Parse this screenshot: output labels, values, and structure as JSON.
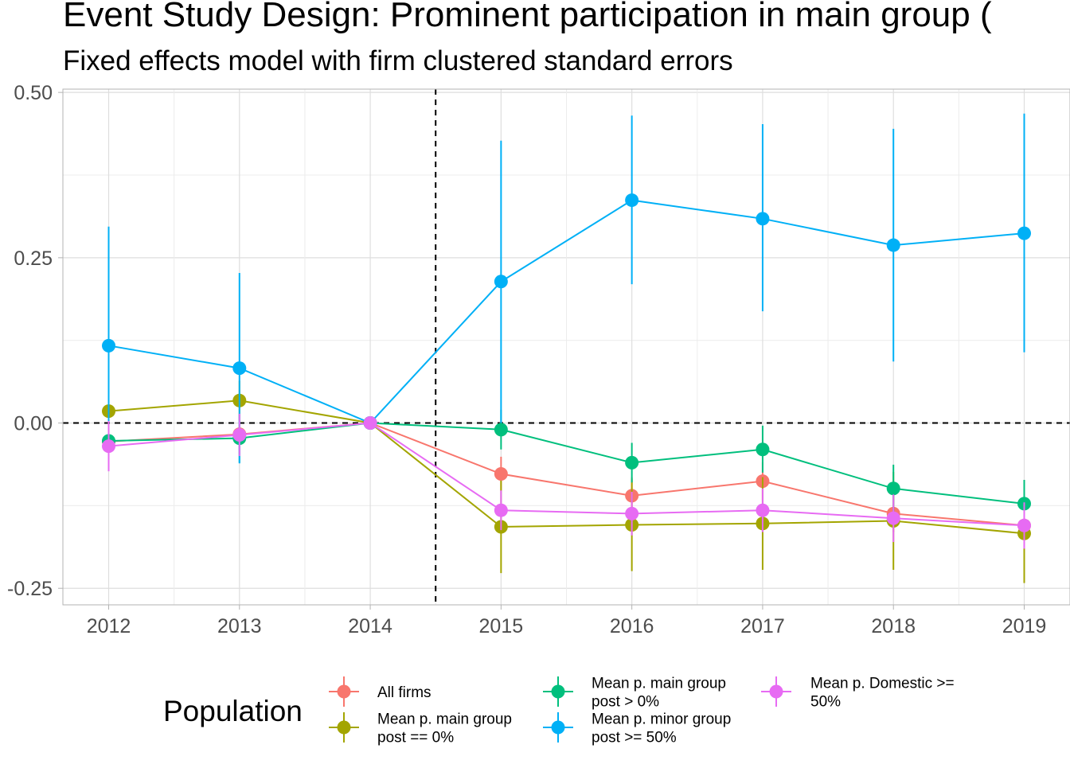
{
  "chart_data": {
    "type": "line",
    "title": "Event Study Design: Prominent participation in main group (",
    "subtitle": "Fixed effects model with firm clustered standard errors",
    "xlabel": "",
    "ylabel": "",
    "x": [
      2012,
      2013,
      2014,
      2015,
      2016,
      2017,
      2018,
      2019
    ],
    "x_tick_labels": [
      "2012",
      "2013",
      "2014",
      "2015",
      "2016",
      "2017",
      "2018",
      "2019"
    ],
    "y_ticks": [
      -0.25,
      0.0,
      0.25,
      0.5
    ],
    "y_tick_labels": [
      "-0.25",
      "0.00",
      "0.25",
      "0.50"
    ],
    "xlim": [
      2011.65,
      2019.35
    ],
    "ylim": [
      -0.275,
      0.505
    ],
    "grid": true,
    "reference_lines": {
      "horizontal": 0.0,
      "vertical": 2014.5,
      "style": "dashed"
    },
    "legend": {
      "title": "Population",
      "position": "bottom"
    },
    "series": [
      {
        "name": "All firms",
        "color": "#F8766D",
        "values": [
          -0.028,
          -0.017,
          0.0,
          -0.077,
          -0.11,
          -0.088,
          -0.137,
          -0.155
        ],
        "lower": [
          -0.058,
          -0.047,
          0.0,
          -0.103,
          -0.138,
          -0.117,
          -0.165,
          -0.185
        ],
        "upper": [
          0.002,
          0.013,
          0.0,
          -0.051,
          -0.082,
          -0.059,
          -0.109,
          -0.125
        ]
      },
      {
        "name": "Mean p. main group\npost == 0%",
        "color": "#A3A500",
        "values": [
          0.018,
          0.034,
          0.0,
          -0.157,
          -0.154,
          -0.152,
          -0.148,
          -0.167
        ],
        "lower": [
          -0.02,
          0.004,
          0.0,
          -0.227,
          -0.224,
          -0.222,
          -0.222,
          -0.242
        ],
        "upper": [
          0.056,
          0.064,
          0.0,
          -0.087,
          -0.084,
          -0.082,
          -0.074,
          -0.092
        ]
      },
      {
        "name": "Mean p. main group\npost > 0%",
        "color": "#00BF7D",
        "values": [
          -0.027,
          -0.023,
          0.0,
          -0.01,
          -0.06,
          -0.04,
          -0.099,
          -0.122
        ],
        "lower": [
          -0.06,
          -0.06,
          0.0,
          -0.04,
          -0.09,
          -0.075,
          -0.135,
          -0.158
        ],
        "upper": [
          0.006,
          0.014,
          0.0,
          0.02,
          -0.03,
          -0.004,
          -0.063,
          -0.086
        ]
      },
      {
        "name": "Mean p. minor group\npost >= 50%",
        "color": "#00B0F6",
        "values": [
          0.117,
          0.083,
          0.0,
          0.214,
          0.337,
          0.309,
          0.269,
          0.287
        ],
        "lower": [
          -0.061,
          -0.061,
          0.0,
          0.0,
          0.21,
          0.169,
          0.093,
          0.107
        ],
        "upper": [
          0.297,
          0.227,
          0.0,
          0.427,
          0.465,
          0.452,
          0.445,
          0.468
        ]
      },
      {
        "name": "Mean p. Domestic >=\n50%",
        "color": "#E76BF3",
        "values": [
          -0.035,
          -0.018,
          0.0,
          -0.132,
          -0.137,
          -0.132,
          -0.144,
          -0.155
        ],
        "lower": [
          -0.073,
          -0.05,
          0.0,
          -0.162,
          -0.17,
          -0.165,
          -0.18,
          -0.19
        ],
        "upper": [
          0.003,
          0.014,
          0.0,
          -0.102,
          -0.104,
          -0.099,
          -0.108,
          -0.12
        ]
      }
    ]
  }
}
